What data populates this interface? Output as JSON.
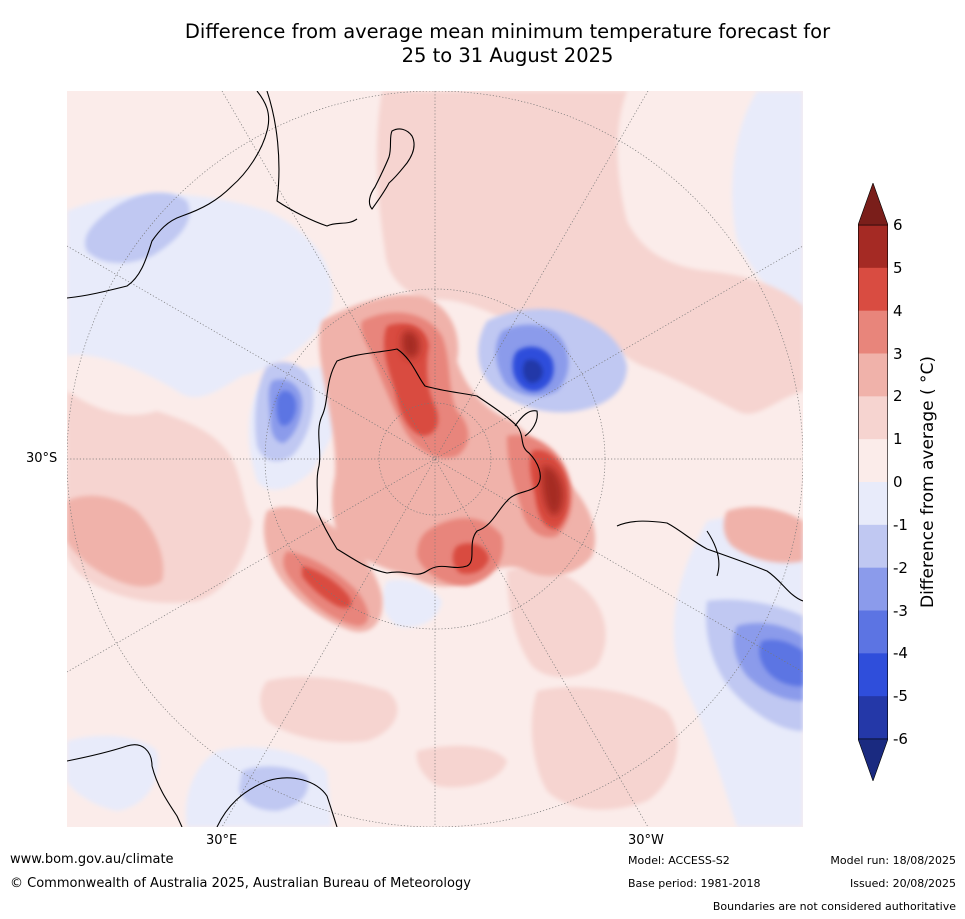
{
  "title_line1": "Difference from average mean minimum temperature forecast for",
  "title_line2": "25 to 31 August 2025",
  "map": {
    "projection": "south-polar-stereographic",
    "graticule_labels": {
      "lat": "30°S",
      "lon_left": "30°E",
      "lon_right": "30°W"
    }
  },
  "colorbar": {
    "title": "Difference from average ( °C)",
    "ticks": [
      "6",
      "5",
      "4",
      "3",
      "2",
      "1",
      "0",
      "-1",
      "-2",
      "-3",
      "-4",
      "-5",
      "-6"
    ],
    "colors_top_to_bottom": [
      "#a52a24",
      "#d94c41",
      "#e8857b",
      "#f0b2aa",
      "#f6d4d0",
      "#fbecea",
      "#e8ebfa",
      "#c0c8f2",
      "#8b9beb",
      "#5c74e3",
      "#2f4edb",
      "#2438a8"
    ],
    "extend_top_color": "#7a1e1a",
    "extend_bottom_color": "#1a2a80"
  },
  "footer": {
    "url": "www.bom.gov.au/climate",
    "copyright": "© Commonwealth of Australia 2025, Australian Bureau of Meteorology",
    "model": "Model: ACCESS-S2",
    "base_period": "Base period: 1981-2018",
    "model_run": "Model run: 18/08/2025",
    "issued": "Issued: 20/08/2025",
    "disclaimer": "Boundaries are not considered authoritative"
  }
}
